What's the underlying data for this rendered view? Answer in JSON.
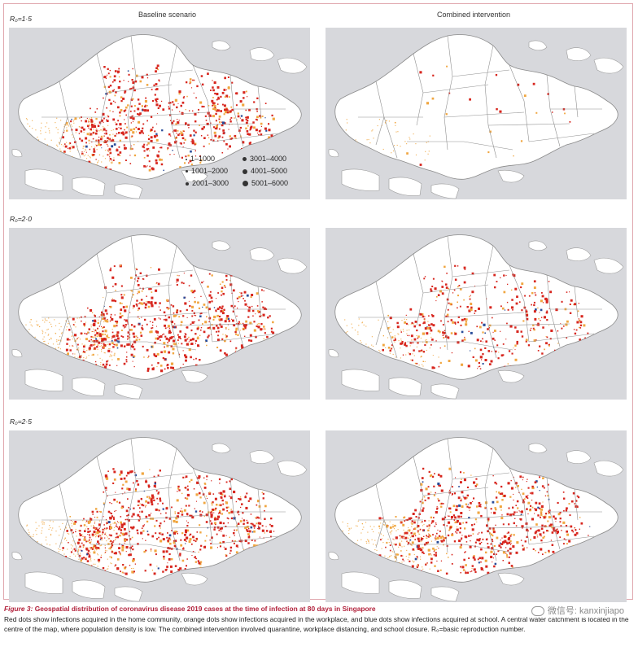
{
  "columns": [
    "Baseline scenario",
    "Combined intervention"
  ],
  "rows": [
    {
      "label": "R₀=1·5",
      "baseline_density": 0.75,
      "intervention_density": 0.03
    },
    {
      "label": "R₀=2·0",
      "baseline_density": 0.85,
      "intervention_density": 0.45
    },
    {
      "label": "R₀=2·5",
      "baseline_density": 0.9,
      "intervention_density": 0.8
    }
  ],
  "legend": {
    "items": [
      "1–1000",
      "1001–2000",
      "2001–3000",
      "3001–4000",
      "4001–5000",
      "5001–6000"
    ]
  },
  "colors": {
    "home": "#d7261e",
    "workplace": "#f0a640",
    "school": "#2a4d9a",
    "water": "#d7d8dc",
    "land": "#ffffff",
    "frame": "#e0a7ae",
    "caption_title": "#b2223c"
  },
  "caption": {
    "figure_label": "Figure 3:",
    "title": "Geospatial distribution of coronavirus disease 2019 cases at the time of infection at 80 days in Singapore",
    "body": "Red dots show infections acquired in the home community, orange dots show infections acquired in the workplace, and blue dots show infections acquired at school. A central water catchment is located in the centre of the map, where population density is low. The combined intervention involved quarantine, workplace distancing, and school closure. R₀=basic reproduction number."
  },
  "watermark": {
    "text": "微信号: kanxinjiapo"
  }
}
